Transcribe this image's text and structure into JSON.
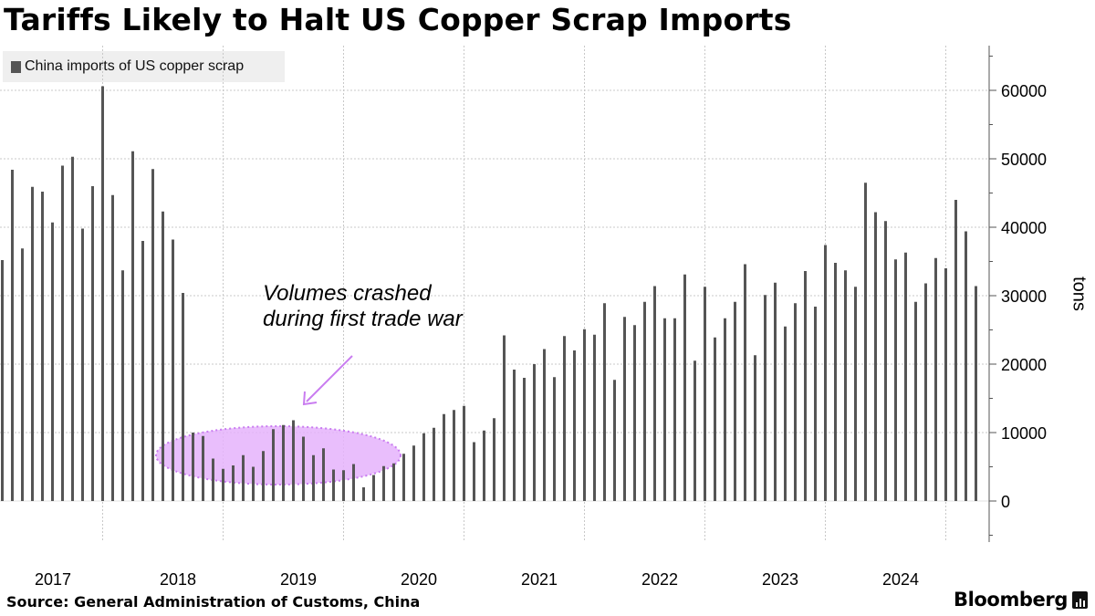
{
  "header": {
    "title": "Tariffs Likely to Halt US Copper Scrap Imports"
  },
  "legend": {
    "label": "China imports of US copper scrap",
    "color": "#555555"
  },
  "annotation": {
    "line1": "Volumes crashed",
    "line2": "during first trade war",
    "highlight_color": "#e5b3fb",
    "highlight_border": "#c97cf0"
  },
  "footer": {
    "source": "Source: General Administration of Customs, China",
    "brand": "Bloomberg"
  },
  "chart_data": {
    "type": "bar",
    "title": "Tariffs Likely to Halt US Copper Scrap Imports",
    "ylabel": "tons",
    "xlabel": "",
    "ylim": [
      -6000,
      66000
    ],
    "yticks": [
      0,
      10000,
      20000,
      30000,
      40000,
      50000,
      60000
    ],
    "grid": true,
    "x_start": "2017-01",
    "year_labels": [
      "2017",
      "2018",
      "2019",
      "2020",
      "2021",
      "2022",
      "2023",
      "2024"
    ],
    "series": [
      {
        "name": "China imports of US copper scrap",
        "values": [
          35200,
          48400,
          36900,
          45900,
          45200,
          40700,
          49000,
          50300,
          39800,
          46000,
          60600,
          44700,
          33700,
          51100,
          38000,
          48500,
          42300,
          38200,
          30400,
          10000,
          9500,
          6200,
          4700,
          5200,
          6700,
          5000,
          7300,
          10500,
          11100,
          11800,
          9400,
          6700,
          7700,
          4600,
          4500,
          5400,
          2000,
          3800,
          5100,
          5500,
          6900,
          8100,
          9900,
          10700,
          12700,
          13300,
          13900,
          8600,
          10300,
          12100,
          24200,
          19200,
          18000,
          20000,
          22200,
          18100,
          24100,
          22000,
          25100,
          24300,
          28900,
          17700,
          26900,
          25700,
          29100,
          31400,
          26700,
          26700,
          33100,
          20500,
          31300,
          23900,
          26700,
          29100,
          34600,
          21300,
          30100,
          31900,
          25500,
          28900,
          33600,
          28400,
          37400,
          34800,
          33700,
          31300,
          46500,
          42200,
          40900,
          35300,
          36300,
          29100,
          31800,
          35500,
          34000,
          44000,
          39400,
          31400
        ]
      }
    ]
  }
}
